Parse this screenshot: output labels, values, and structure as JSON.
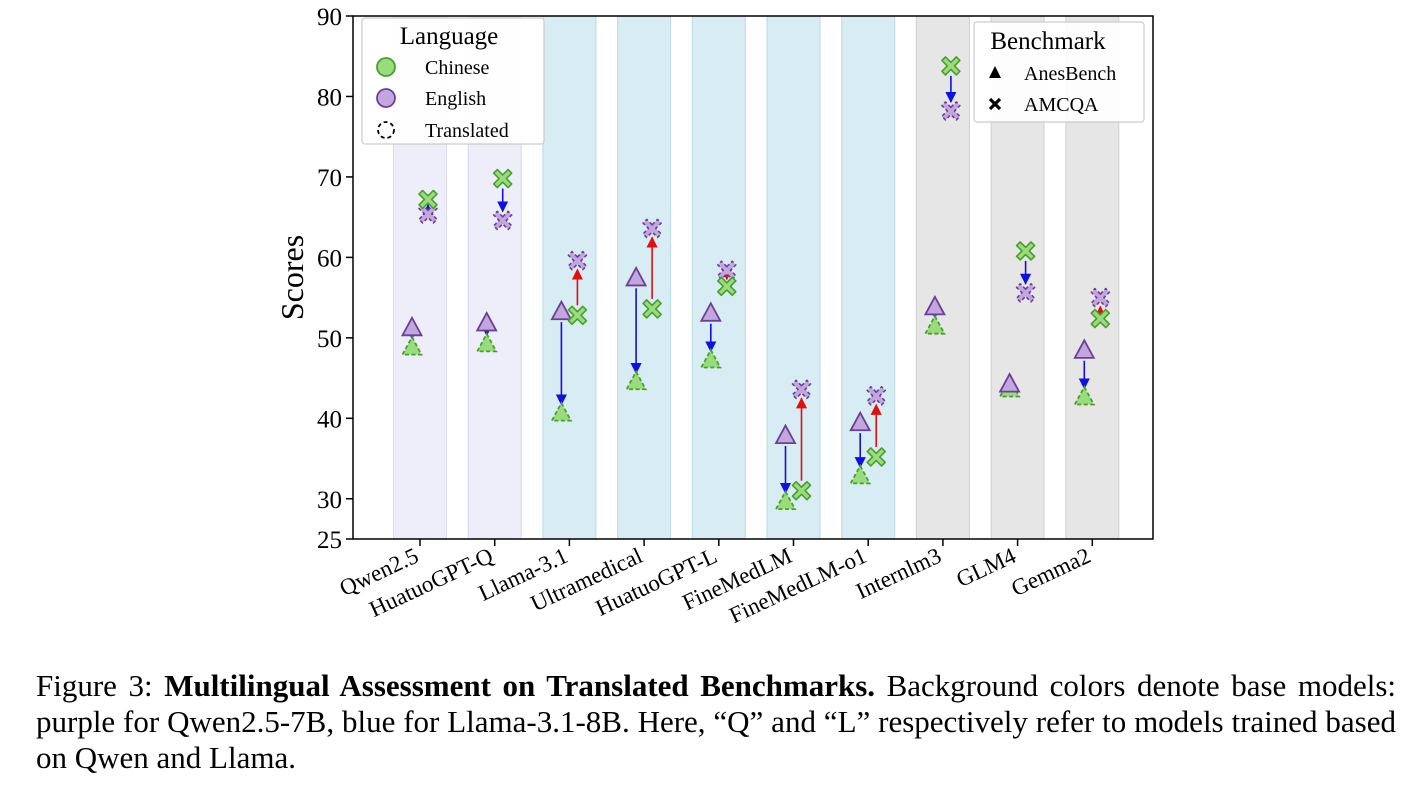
{
  "chart_data": {
    "type": "scatter",
    "ylabel": "Scores",
    "xlabel": "",
    "ylim": [
      25,
      90
    ],
    "yticks": [
      25,
      30,
      40,
      50,
      60,
      70,
      80,
      90
    ],
    "grid": false,
    "categories": [
      "Qwen2.5",
      "HuatuoGPT-Q",
      "Llama-3.1",
      "Ultramedical",
      "HuatuoGPT-L",
      "FineMedLM",
      "FineMedLM-o1",
      "Internlm3",
      "GLM4",
      "Gemma2"
    ],
    "base_model_groups": [
      "qwen",
      "qwen",
      "llama",
      "llama",
      "llama",
      "llama",
      "llama",
      "other",
      "other",
      "other"
    ],
    "points": {
      "anesbench_english": [
        51.2,
        51.8,
        53.2,
        57.4,
        53.0,
        37.8,
        39.4,
        53.8,
        44.2,
        48.4
      ],
      "anesbench_chinese_translated": [
        48.8,
        49.2,
        40.6,
        44.5,
        47.2,
        29.6,
        32.8,
        51.4,
        43.6,
        42.6
      ],
      "amcqa_chinese": [
        67.2,
        69.8,
        52.8,
        53.6,
        56.4,
        31.0,
        35.2,
        83.8,
        60.8,
        52.4
      ],
      "amcqa_english_translated": [
        65.4,
        64.6,
        59.6,
        63.6,
        58.4,
        43.6,
        42.8,
        78.2,
        55.6,
        55.0
      ]
    },
    "arrows_note": "arrows point from original-language score to translated score; blue = decrease, red = increase",
    "legend_language": {
      "title": "Language",
      "entries": [
        "Chinese",
        "English",
        "Translated"
      ],
      "position": "top-left"
    },
    "legend_benchmark": {
      "title": "Benchmark",
      "entries": [
        "AnesBench",
        "AMCQA"
      ],
      "position": "top-right"
    },
    "colors": {
      "chinese_fill": "#98dc7c",
      "chinese_edge": "#4a9e2e",
      "english_fill": "#c4a6de",
      "english_edge": "#6a3f96",
      "arrow_down": "#1010e0",
      "arrow_up": "#e01010",
      "bg_qwen": "#eeeefa",
      "bg_llama": "#d8ecf3",
      "bg_other": "#e6e6e6"
    }
  },
  "caption": {
    "prefix": "Figure 3: ",
    "bold": "Multilingual Assessment on Translated Benchmarks.",
    "rest": " Background colors denote base models: purple for Qwen2.5-7B, blue for Llama-3.1-8B. Here, “Q” and “L” respectively refer to models trained based on Qwen and Llama."
  }
}
